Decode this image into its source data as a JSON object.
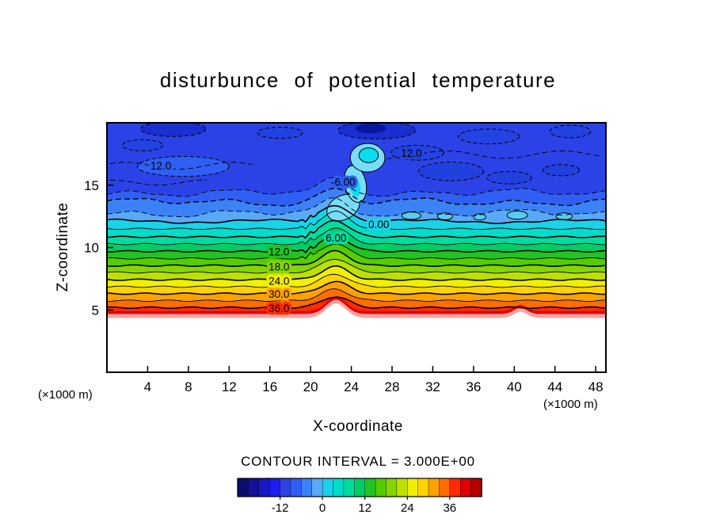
{
  "chart_data": {
    "type": "heatmap",
    "title": "disturbunce of potential temperature",
    "xlabel": "X-coordinate",
    "ylabel": "Z-coordinate",
    "x_unit": "(×1000 m)",
    "y_unit": "(×1000 m)",
    "caption": "CONTOUR INTERVAL = 3.000E+00",
    "contour_interval": 3.0,
    "x_ticks": [
      4,
      8,
      12,
      16,
      20,
      24,
      28,
      32,
      36,
      40,
      44,
      48
    ],
    "y_ticks": [
      5,
      10,
      15
    ],
    "x_range": [
      0,
      49
    ],
    "z_range": [
      0,
      20
    ],
    "palette_min": -24,
    "palette_max": 45,
    "palette": [
      "#0d0d70",
      "#12129a",
      "#1717c4",
      "#1d1dee",
      "#2b43e6",
      "#2f5ff5",
      "#3b82f7",
      "#58aaf8",
      "#19d3e8",
      "#00dcc8",
      "#00dca0",
      "#00cc66",
      "#22c322",
      "#55cc00",
      "#85d500",
      "#bde000",
      "#f2ee00",
      "#ffd300",
      "#ffa100",
      "#ff6d00",
      "#ff2b00",
      "#df0000",
      "#b30000"
    ],
    "colorbar_ticks": [
      -12,
      0,
      12,
      24,
      36
    ],
    "upper_base_color": "#2b43e6",
    "surface_band_color": "#ffa3a3",
    "contour_levels": {
      "-9": 14.4,
      "-6": 13.65,
      "-3": 12.75,
      "0": 12.1,
      "3": 11.5,
      "6": 10.85,
      "9": 10.28,
      "12": 9.7,
      "15": 9.12,
      "18": 8.55,
      "21": 8.0,
      "24": 7.42,
      "27": 6.86,
      "30": 6.3,
      "33": 5.74,
      "36": 5.18
    },
    "solid_levels": [
      0,
      3,
      6,
      9,
      12,
      15,
      18,
      21,
      24,
      27,
      30,
      33,
      36
    ],
    "dashed_levels": [
      -3,
      -6,
      -9
    ],
    "extra_dashed": [
      {
        "z": 16.55,
        "x0": 0.3,
        "x1": 14.5,
        "amp": 0.28,
        "freq": 0.6,
        "ph": 0.5
      },
      {
        "z": 17.45,
        "x0": 27.5,
        "x1": 48.7,
        "amp": 0.3,
        "freq": 0.55,
        "ph": 2.1
      },
      {
        "z": 15.2,
        "x0": 0.3,
        "x1": 10,
        "amp": 0.2,
        "freq": 0.7,
        "ph": 1.2
      }
    ],
    "disturbance": {
      "x": 22.4,
      "w": 1.9
    },
    "terrain": {
      "base_z": 4.35,
      "bumps": [
        {
          "x": 22.5,
          "h": 1.15,
          "w": 1.35
        },
        {
          "x": 40.6,
          "h": 0.5,
          "w": 0.9
        }
      ]
    },
    "contour_labels": [
      {
        "text": "12.0",
        "x": 5.3,
        "z": 16.55,
        "bg": "#2f5ff5"
      },
      {
        "text": "12.0",
        "x": 29.9,
        "z": 17.55,
        "bg": "#2342e2"
      },
      {
        "text": "-6.00",
        "x": 23.2,
        "z": 15.25,
        "bg": "#2f5ff5"
      },
      {
        "text": "0.00",
        "x": 26.7,
        "z": 11.85,
        "bg": "#19d3e8"
      },
      {
        "text": "6.00",
        "x": 22.5,
        "z": 10.75,
        "bg": "#00dca0"
      },
      {
        "text": "12.0",
        "x": 16.9,
        "z": 9.65,
        "bg": "#22c322"
      },
      {
        "text": "18.0",
        "x": 16.9,
        "z": 8.45,
        "bg": "#85d500"
      },
      {
        "text": "24.0",
        "x": 16.9,
        "z": 7.3,
        "bg": "#f2ee00"
      },
      {
        "text": "30.0",
        "x": 16.9,
        "z": 6.25,
        "bg": "#ffa100"
      },
      {
        "text": "36.0",
        "x": 16.9,
        "z": 5.1,
        "bg": "#ff2b00"
      }
    ],
    "features": [
      {
        "x": 23.2,
        "z": 13.2,
        "rx": 1.7,
        "ry": 0.95,
        "rot": -28,
        "fill": "#79dcfa",
        "outline": "solid"
      },
      {
        "x": 24.4,
        "z": 15.1,
        "rx": 1.05,
        "ry": 1.5,
        "rot": -12,
        "fill": "#79dcfa",
        "outline": "solid"
      },
      {
        "x": 25.6,
        "z": 17.2,
        "rx": 1.7,
        "ry": 1.15,
        "rot": 0,
        "fill": "#79dcfa",
        "outline": "solid"
      },
      {
        "x": 25.7,
        "z": 17.4,
        "rx": 0.95,
        "ry": 0.6,
        "rot": 0,
        "fill": "#0adcf0",
        "outline": "solid"
      },
      {
        "x": 24.35,
        "z": 14.9,
        "rx": 0.5,
        "ry": 0.85,
        "rot": -12,
        "fill": "#0adcf0",
        "outline": "none"
      },
      {
        "x": 29.9,
        "z": 12.55,
        "rx": 0.95,
        "ry": 0.3,
        "rot": 0,
        "fill": "#55ccf5",
        "outline": "solid"
      },
      {
        "x": 33.2,
        "z": 12.5,
        "rx": 0.75,
        "ry": 0.28,
        "rot": 0,
        "fill": "#55ccf5",
        "outline": "solid"
      },
      {
        "x": 36.6,
        "z": 12.45,
        "rx": 0.6,
        "ry": 0.25,
        "rot": 0,
        "fill": "#55ccf5",
        "outline": "solid"
      },
      {
        "x": 40.3,
        "z": 12.6,
        "rx": 1.0,
        "ry": 0.33,
        "rot": 0,
        "fill": "#55ccf5",
        "outline": "solid"
      },
      {
        "x": 44.9,
        "z": 12.5,
        "rx": 0.8,
        "ry": 0.28,
        "rot": 0,
        "fill": "#55ccf5",
        "outline": "solid"
      },
      {
        "x": 6.5,
        "z": 19.5,
        "rx": 3.2,
        "ry": 0.6,
        "rot": 0,
        "fill": "#1a2fd0",
        "outline": "dashed"
      },
      {
        "x": 17.0,
        "z": 19.2,
        "rx": 2.2,
        "ry": 0.45,
        "rot": 0,
        "fill": "#2342e2",
        "outline": "dashed"
      },
      {
        "x": 26.5,
        "z": 19.4,
        "rx": 3.8,
        "ry": 0.7,
        "rot": 0,
        "fill": "#1a2fd0",
        "outline": "dashed"
      },
      {
        "x": 25.9,
        "z": 19.55,
        "rx": 1.5,
        "ry": 0.4,
        "rot": 0,
        "fill": "#0a16a0",
        "outline": "none"
      },
      {
        "x": 37.5,
        "z": 18.9,
        "rx": 3.0,
        "ry": 0.6,
        "rot": 0,
        "fill": "#2342e2",
        "outline": "dashed"
      },
      {
        "x": 45.5,
        "z": 19.3,
        "rx": 2.0,
        "ry": 0.5,
        "rot": 0,
        "fill": "#2342e2",
        "outline": "dashed"
      },
      {
        "x": 33.8,
        "z": 16.1,
        "rx": 3.2,
        "ry": 0.75,
        "rot": 0,
        "fill": "#2140dd",
        "outline": "dashed"
      },
      {
        "x": 39.5,
        "z": 15.6,
        "rx": 2.2,
        "ry": 0.5,
        "rot": 0,
        "fill": "#2140dd",
        "outline": "dashed"
      },
      {
        "x": 44.6,
        "z": 16.2,
        "rx": 1.8,
        "ry": 0.45,
        "rot": 0,
        "fill": "#2140dd",
        "outline": "dashed"
      },
      {
        "x": 30.5,
        "z": 17.6,
        "rx": 2.6,
        "ry": 0.6,
        "rot": 0,
        "fill": "#2342e2",
        "outline": "dashed"
      },
      {
        "x": 7.5,
        "z": 16.5,
        "rx": 4.5,
        "ry": 0.8,
        "rot": 0,
        "fill": "#2f5ff5",
        "outline": "dashed"
      },
      {
        "x": 3.5,
        "z": 18.2,
        "rx": 2.0,
        "ry": 0.45,
        "rot": 0,
        "fill": "#2342e2",
        "outline": "dashed"
      }
    ]
  }
}
